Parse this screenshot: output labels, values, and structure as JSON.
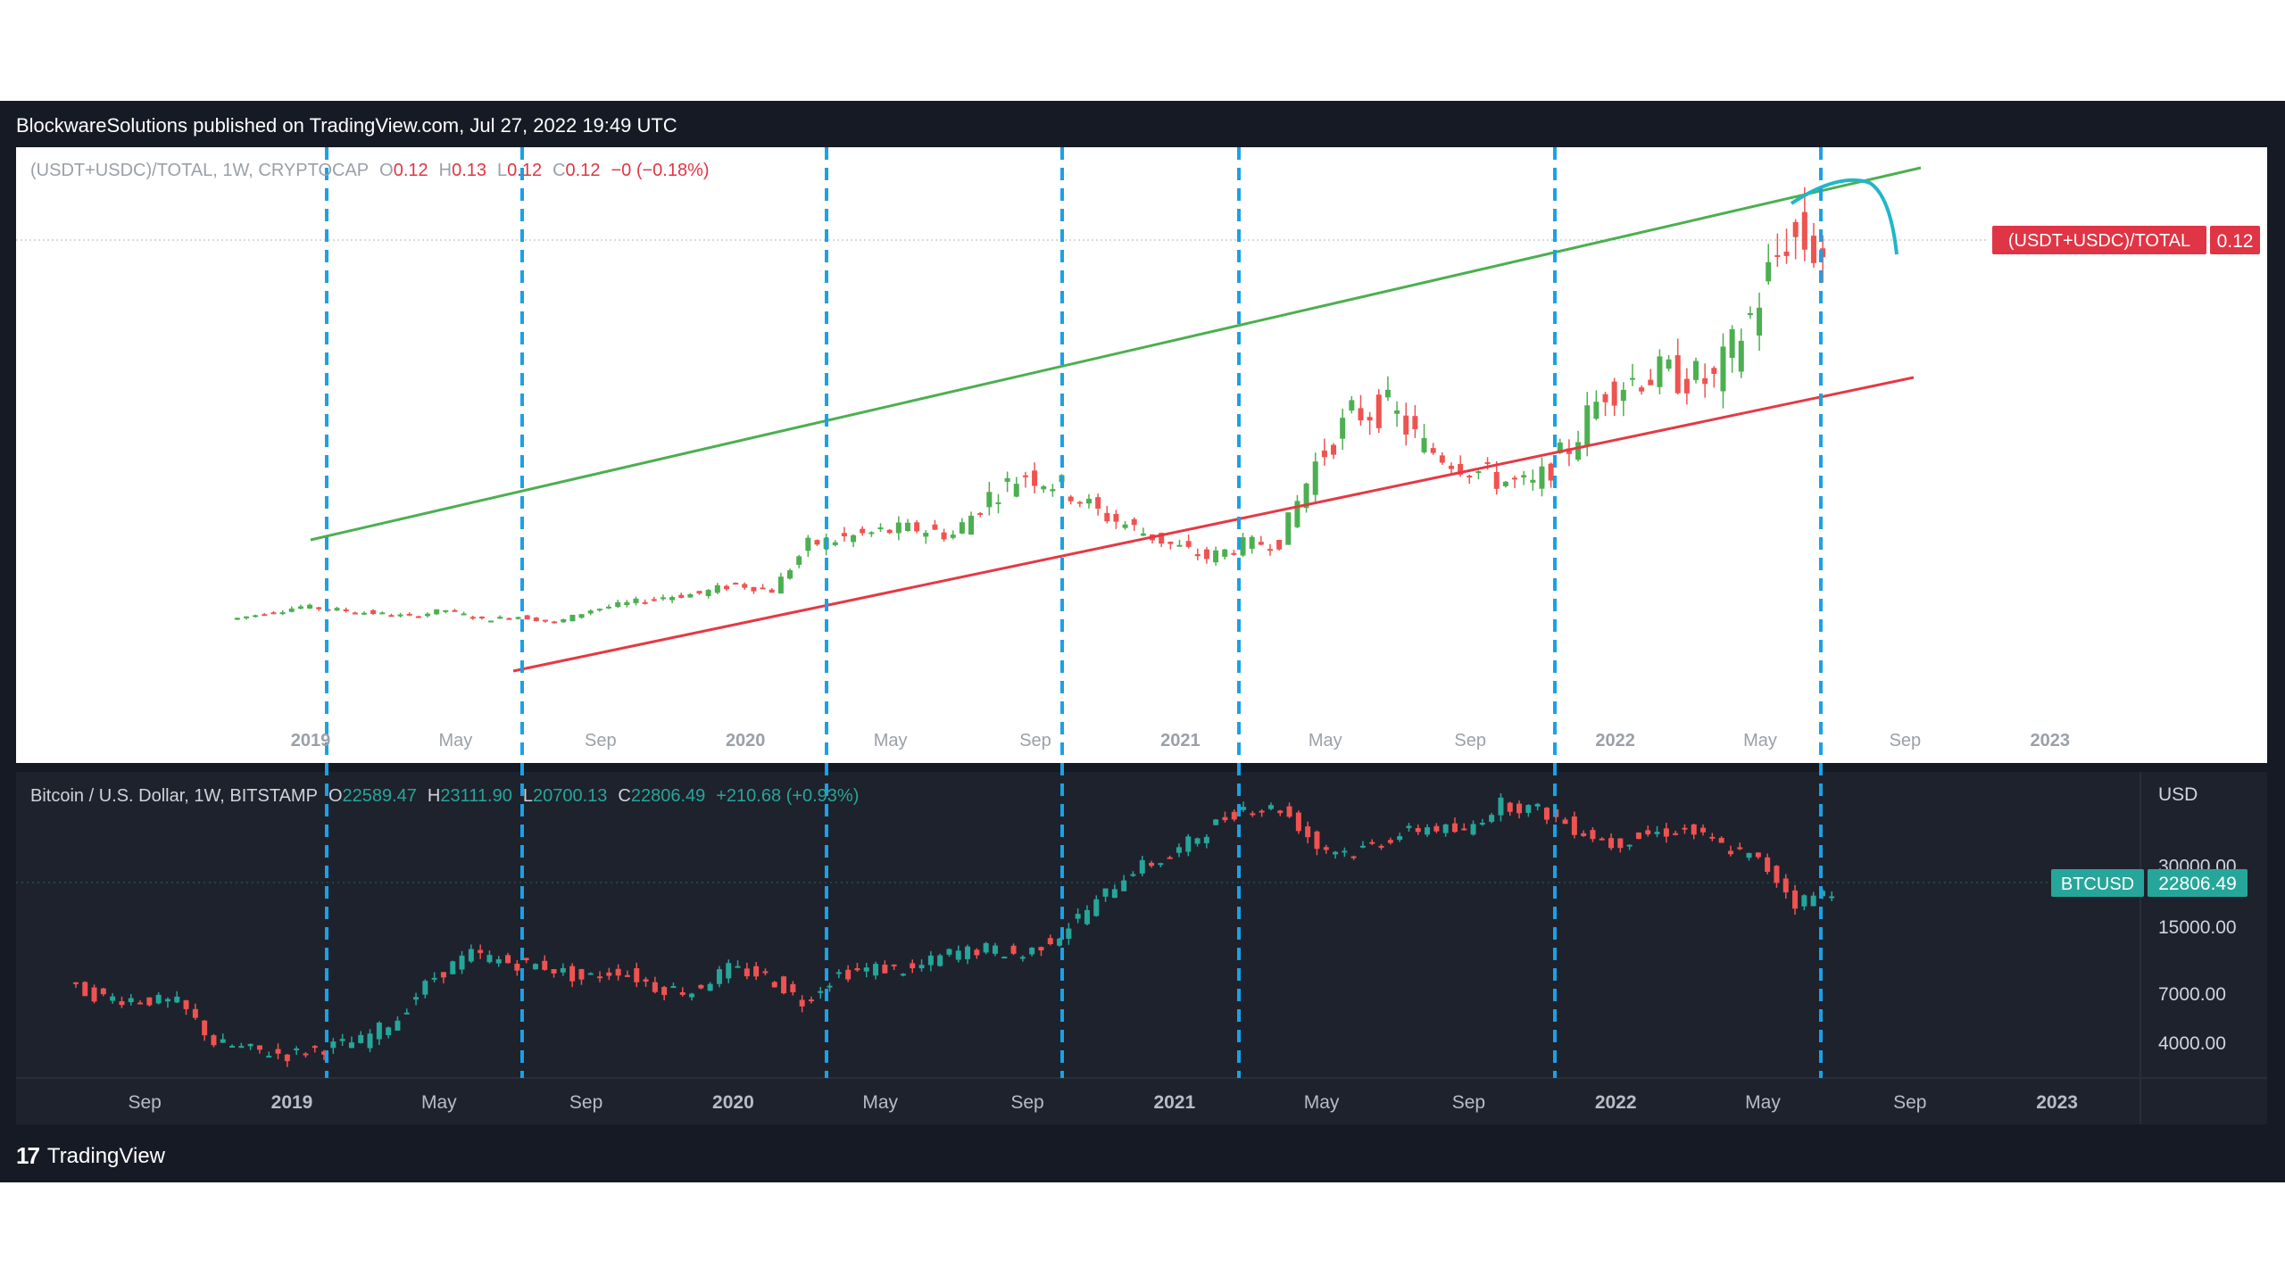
{
  "header": {
    "published_text": "BlockwareSolutions published on TradingView.com, Jul 27, 2022 19:49 UTC"
  },
  "footer": {
    "brand": "TradingView",
    "logo_icon": "tradingview-logo-icon"
  },
  "colors": {
    "frame_bg": "#161a24",
    "top_pane_bg": "#ffffff",
    "bottom_pane_bg": "#1e222d",
    "up_candle": "#26a69a",
    "down_candle": "#ef5350",
    "top_up_candle": "#4caf50",
    "top_down_candle": "#ef5350",
    "channel_upper": "#4caf50",
    "channel_lower": "#e53945",
    "cycle_line": "#1aa1e6",
    "annotation_arc": "#20b6c9",
    "top_price_tag": "#e03545",
    "bottom_price_tag": "#26a69a"
  },
  "top_pane": {
    "legend": {
      "symbol": "(USDT+USDC)/TOTAL, 1W, CRYPTOCAP",
      "o_label": "O",
      "o_value": "0.12",
      "h_label": "H",
      "h_value": "0.13",
      "l_label": "L",
      "l_value": "0.12",
      "c_label": "C",
      "c_value": "0.12",
      "change": "−0 (−0.18%)"
    },
    "price_tag": {
      "name": "(USDT+USDC)/TOTAL",
      "value": "0.12"
    },
    "time_axis": [
      "2019",
      "May",
      "Sep",
      "2020",
      "May",
      "Sep",
      "2021",
      "May",
      "Sep",
      "2022",
      "May",
      "Sep",
      "2023"
    ]
  },
  "bottom_pane": {
    "legend": {
      "symbol": "Bitcoin / U.S. Dollar, 1W, BITSTAMP",
      "o_label": "O",
      "o_value": "22589.47",
      "h_label": "H",
      "h_value": "23111.90",
      "l_label": "L",
      "l_value": "20700.13",
      "c_label": "C",
      "c_value": "22806.49",
      "change": "+210.68 (+0.93%)"
    },
    "currency": "USD",
    "price_axis": [
      "30000.00",
      "15000.00",
      "7000.00",
      "4000.00"
    ],
    "price_tag": {
      "name": "BTCUSD",
      "value": "22806.49"
    },
    "time_axis": [
      "Sep",
      "2019",
      "May",
      "Sep",
      "2020",
      "May",
      "Sep",
      "2021",
      "May",
      "Sep",
      "2022",
      "May",
      "Sep",
      "2023"
    ]
  },
  "chart_data": [
    {
      "type": "line",
      "title": "(USDT+USDC)/TOTAL, 1W, CRYPTOCAP",
      "x_unit": "month",
      "x": [
        "2018-11",
        "2018-12",
        "2019-01",
        "2019-02",
        "2019-03",
        "2019-04",
        "2019-05",
        "2019-06",
        "2019-07",
        "2019-08",
        "2019-09",
        "2019-10",
        "2019-11",
        "2019-12",
        "2020-01",
        "2020-02",
        "2020-03",
        "2020-04",
        "2020-05",
        "2020-06",
        "2020-07",
        "2020-08",
        "2020-09",
        "2020-10",
        "2020-11",
        "2020-12",
        "2021-01",
        "2021-02",
        "2021-03",
        "2021-04",
        "2021-05",
        "2021-06",
        "2021-07",
        "2021-08",
        "2021-09",
        "2021-10",
        "2021-11",
        "2021-12",
        "2022-01",
        "2022-02",
        "2022-03",
        "2022-04",
        "2022-05",
        "2022-06",
        "2022-07"
      ],
      "series": [
        {
          "values": [
            0.007,
            0.009,
            0.011,
            0.01,
            0.009,
            0.008,
            0.01,
            0.007,
            0.008,
            0.006,
            0.01,
            0.012,
            0.014,
            0.015,
            0.018,
            0.016,
            0.03,
            0.032,
            0.034,
            0.035,
            0.033,
            0.045,
            0.052,
            0.048,
            0.04,
            0.035,
            0.03,
            0.026,
            0.03,
            0.031,
            0.055,
            0.07,
            0.072,
            0.06,
            0.055,
            0.05,
            0.048,
            0.06,
            0.078,
            0.082,
            0.082,
            0.08,
            0.1,
            0.125,
            0.12
          ]
        }
      ],
      "channel_lines": [
        "upper",
        "lower"
      ],
      "cycle_markers": [
        "2019-01",
        "2019-06",
        "2020-03",
        "2020-09",
        "2021-02",
        "2021-11",
        "2022-06"
      ]
    },
    {
      "type": "line",
      "title": "Bitcoin / U.S. Dollar, 1W, BITSTAMP",
      "x_unit": "month",
      "x": [
        "2018-07",
        "2018-08",
        "2018-09",
        "2018-10",
        "2018-11",
        "2018-12",
        "2019-01",
        "2019-02",
        "2019-03",
        "2019-04",
        "2019-05",
        "2019-06",
        "2019-07",
        "2019-08",
        "2019-09",
        "2019-10",
        "2019-11",
        "2019-12",
        "2020-01",
        "2020-02",
        "2020-03",
        "2020-04",
        "2020-05",
        "2020-06",
        "2020-07",
        "2020-08",
        "2020-09",
        "2020-10",
        "2020-11",
        "2020-12",
        "2021-01",
        "2021-02",
        "2021-03",
        "2021-04",
        "2021-05",
        "2021-06",
        "2021-07",
        "2021-08",
        "2021-09",
        "2021-10",
        "2021-11",
        "2021-12",
        "2022-01",
        "2022-02",
        "2022-03",
        "2022-04",
        "2022-05",
        "2022-06",
        "2022-07"
      ],
      "series": [
        {
          "name": "BTCUSD",
          "values": [
            7700,
            6700,
            6600,
            6300,
            4000,
            3700,
            3500,
            3800,
            4100,
            5300,
            8500,
            11000,
            10000,
            9600,
            8300,
            9200,
            7600,
            7200,
            9300,
            8600,
            6400,
            8800,
            9400,
            9150,
            11100,
            11700,
            10800,
            13800,
            19700,
            29000,
            33100,
            45200,
            58800,
            57700,
            37300,
            35000,
            41500,
            47100,
            43800,
            61300,
            57000,
            46200,
            38500,
            43200,
            45500,
            37700,
            31800,
            19800,
            22806
          ]
        }
      ],
      "y_ticks": [
        4000,
        7000,
        15000,
        30000
      ],
      "y_scale": "log",
      "cycle_markers": [
        "2019-01",
        "2019-06",
        "2020-03",
        "2020-09",
        "2021-02",
        "2021-11",
        "2022-06"
      ]
    }
  ]
}
